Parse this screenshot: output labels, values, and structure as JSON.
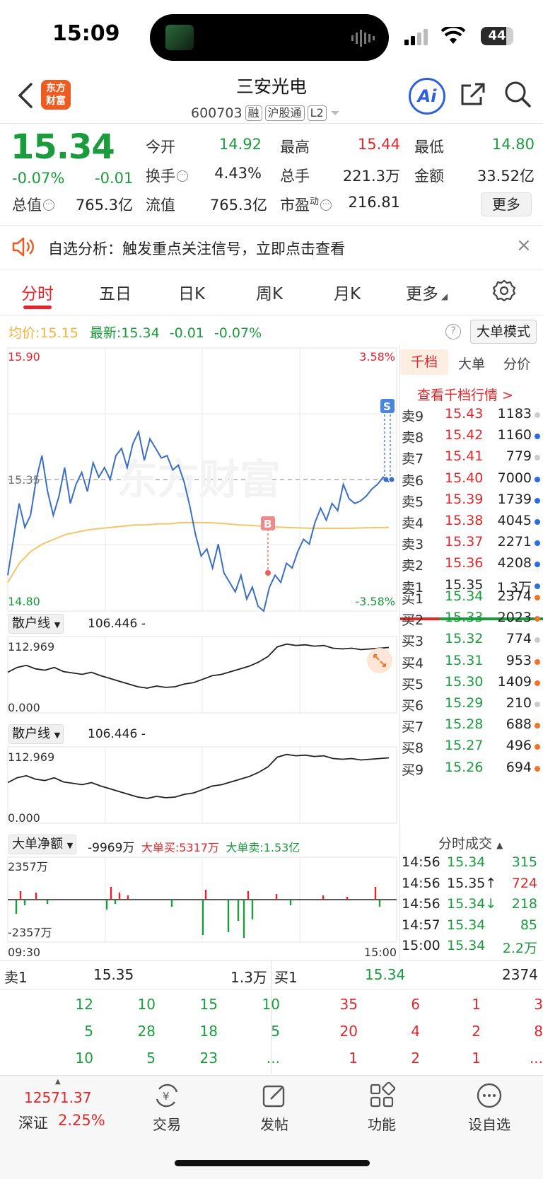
{
  "status_bar": {
    "time": "15:09",
    "battery": "44"
  },
  "header": {
    "logo_line1": "东方",
    "logo_line2": "财富",
    "stock_name": "三安光电",
    "stock_code": "600703",
    "tags": [
      "融",
      "沪股通",
      "L2"
    ],
    "ai_label": "Ai"
  },
  "quote": {
    "price": "15.34",
    "change_pct": "-0.07%",
    "change_abs": "-0.01",
    "fields": [
      {
        "label": "今开",
        "value": "14.92",
        "color": "green"
      },
      {
        "label": "最高",
        "value": "15.44",
        "color": "red"
      },
      {
        "label": "最低",
        "value": "14.80",
        "color": "green"
      },
      {
        "label": "换手",
        "value": "4.43%",
        "color": "dark"
      },
      {
        "label": "总手",
        "value": "221.3万",
        "color": "dark"
      },
      {
        "label": "金额",
        "value": "33.52亿",
        "color": "dark"
      },
      {
        "label": "总值",
        "value": "765.3亿",
        "color": "dark"
      },
      {
        "label": "流值",
        "value": "765.3亿",
        "color": "dark"
      },
      {
        "label": "市盈",
        "label_sup": "动",
        "value": "216.81",
        "color": "dark"
      }
    ],
    "more_label": "更多"
  },
  "notice": {
    "text": "自选分析：触发重点关注信号，立即点击查看"
  },
  "tabs": [
    "分时",
    "五日",
    "日K",
    "周K",
    "月K",
    "更多"
  ],
  "chart_header": {
    "avg_label": "均价:",
    "avg_value": "15.15",
    "latest_label": "最新:",
    "latest_value": "15.34",
    "latest_change": "-0.01",
    "latest_pct": "-0.07%",
    "mode_button": "大单模式"
  },
  "chart_data": {
    "type": "line",
    "main": {
      "y_top_label": "15.90",
      "y_bottom_label": "14.80",
      "y_mid_label": "15.35",
      "pct_top": "3.58%",
      "pct_bottom": "-3.58%",
      "ylim": [
        14.8,
        15.9
      ],
      "prev_close": 15.35,
      "watermark": "东方财富",
      "markers": [
        {
          "label": "B",
          "price": 14.95
        },
        {
          "label": "S",
          "price": 15.34
        }
      ],
      "series": [
        {
          "name": "价格",
          "values": [
            14.95,
            15.1,
            15.25,
            15.15,
            15.2,
            15.35,
            15.45,
            15.3,
            15.2,
            15.28,
            15.4,
            15.25,
            15.33,
            15.38,
            15.3,
            15.42,
            15.36,
            15.4,
            15.35,
            15.45,
            15.48,
            15.4,
            15.5,
            15.55,
            15.43,
            15.52,
            15.48,
            15.44,
            15.45,
            15.39,
            15.41,
            15.34,
            15.24,
            15.12,
            15.03,
            15.06,
            14.98,
            15.08,
            14.96,
            14.92,
            14.88,
            14.95,
            14.85,
            14.9,
            14.82,
            14.8,
            14.9,
            14.95,
            14.92,
            15.0,
            14.98,
            15.05,
            15.1,
            15.08,
            15.17,
            15.23,
            15.18,
            15.25,
            15.22,
            15.33,
            15.27,
            15.25,
            15.26,
            15.28,
            15.31,
            15.33,
            15.36,
            15.34
          ]
        },
        {
          "name": "均价",
          "values": [
            14.92,
            15.0,
            15.05,
            15.08,
            15.1,
            15.12,
            15.13,
            15.14,
            15.145,
            15.15,
            15.155,
            15.16,
            15.16,
            15.165,
            15.165,
            15.17,
            15.17,
            15.17,
            15.168,
            15.165,
            15.16,
            15.158,
            15.155,
            15.152,
            15.15,
            15.148,
            15.147,
            15.146,
            15.146,
            15.146,
            15.147,
            15.148,
            15.149,
            15.15
          ]
        }
      ]
    },
    "sub1": {
      "title": "散户线",
      "value": "106.446 -",
      "y_top_label": "112.969",
      "y_bottom_label": "0.000"
    },
    "sub2": {
      "title": "散户线",
      "value": "106.446 -",
      "y_top_label": "112.969",
      "y_bottom_label": "0.000"
    },
    "sub3": {
      "title": "大单净额",
      "net": "-9969万",
      "buy": "大单买:5317万",
      "sell": "大单卖:1.53亿",
      "y_top_label": "2357万",
      "y_bottom_label": "-2357万"
    },
    "time_start": "09:30",
    "time_end": "15:00"
  },
  "order_book": {
    "tabs": [
      "千档",
      "大单",
      "分价"
    ],
    "link": "查看千档行情 >",
    "asks": [
      {
        "label": "卖9",
        "price": "15.43",
        "vol": "1183",
        "dot": "#cccccc"
      },
      {
        "label": "卖8",
        "price": "15.42",
        "vol": "1160",
        "dot": "#2d6cdf"
      },
      {
        "label": "卖7",
        "price": "15.41",
        "vol": "779",
        "dot": "#cccccc"
      },
      {
        "label": "卖6",
        "price": "15.40",
        "vol": "7000",
        "dot": "#2d6cdf"
      },
      {
        "label": "卖5",
        "price": "15.39",
        "vol": "1739",
        "dot": "#2d6cdf"
      },
      {
        "label": "卖4",
        "price": "15.38",
        "vol": "4045",
        "dot": "#2d6cdf"
      },
      {
        "label": "卖3",
        "price": "15.37",
        "vol": "2271",
        "dot": "#2d6cdf"
      },
      {
        "label": "卖2",
        "price": "15.36",
        "vol": "4208",
        "dot": "#2d6cdf"
      },
      {
        "label": "卖1",
        "price": "15.35",
        "vol": "1.3万",
        "dot": "#2d6cdf"
      }
    ],
    "bids": [
      {
        "label": "买1",
        "price": "15.34",
        "vol": "2374",
        "dot": "#f0752a"
      },
      {
        "label": "买2",
        "price": "15.33",
        "vol": "2023",
        "dot": "#f0752a"
      },
      {
        "label": "买3",
        "price": "15.32",
        "vol": "774",
        "dot": "#cccccc"
      },
      {
        "label": "买4",
        "price": "15.31",
        "vol": "953",
        "dot": "#f0752a"
      },
      {
        "label": "买5",
        "price": "15.30",
        "vol": "1409",
        "dot": "#f0752a"
      },
      {
        "label": "买6",
        "price": "15.29",
        "vol": "210",
        "dot": "#cccccc"
      },
      {
        "label": "买7",
        "price": "15.28",
        "vol": "688",
        "dot": "#f0752a"
      },
      {
        "label": "买8",
        "price": "15.27",
        "vol": "496",
        "dot": "#f0752a"
      },
      {
        "label": "买9",
        "price": "15.26",
        "vol": "694",
        "dot": "#f0752a"
      }
    ],
    "ticks_title": "分时成交",
    "ticks": [
      {
        "time": "14:56",
        "price": "15.34",
        "price_color": "green",
        "vol": "315",
        "vol_color": "green"
      },
      {
        "time": "14:56",
        "price": "15.35↑",
        "price_color": "dark",
        "vol": "724",
        "vol_color": "red"
      },
      {
        "time": "14:56",
        "price": "15.34↓",
        "price_color": "green",
        "vol": "218",
        "vol_color": "green"
      },
      {
        "time": "14:57",
        "price": "15.34",
        "price_color": "green",
        "vol": "85",
        "vol_color": "green"
      },
      {
        "time": "15:00",
        "price": "15.34",
        "price_color": "green",
        "vol": "2.2万",
        "vol_color": "green"
      }
    ]
  },
  "bottom_panel": {
    "sell": {
      "label": "卖1",
      "price": "15.35",
      "vol": "1.3万"
    },
    "buy": {
      "label": "买1",
      "price": "15.34",
      "vol": "2374"
    },
    "left_grid": [
      [
        "12",
        "10",
        "15",
        "10"
      ],
      [
        "5",
        "28",
        "18",
        "5"
      ],
      [
        "10",
        "5",
        "23",
        "..."
      ]
    ],
    "right_grid": [
      [
        "35",
        "6",
        "1",
        "3"
      ],
      [
        "20",
        "4",
        "2",
        "8"
      ],
      [
        "1",
        "2",
        "1",
        "..."
      ]
    ]
  },
  "bottom_bar": {
    "index_value": "12571.37",
    "index_name": "深证",
    "index_change": "2.25%",
    "items": [
      "交易",
      "发帖",
      "功能",
      "设自选"
    ]
  }
}
